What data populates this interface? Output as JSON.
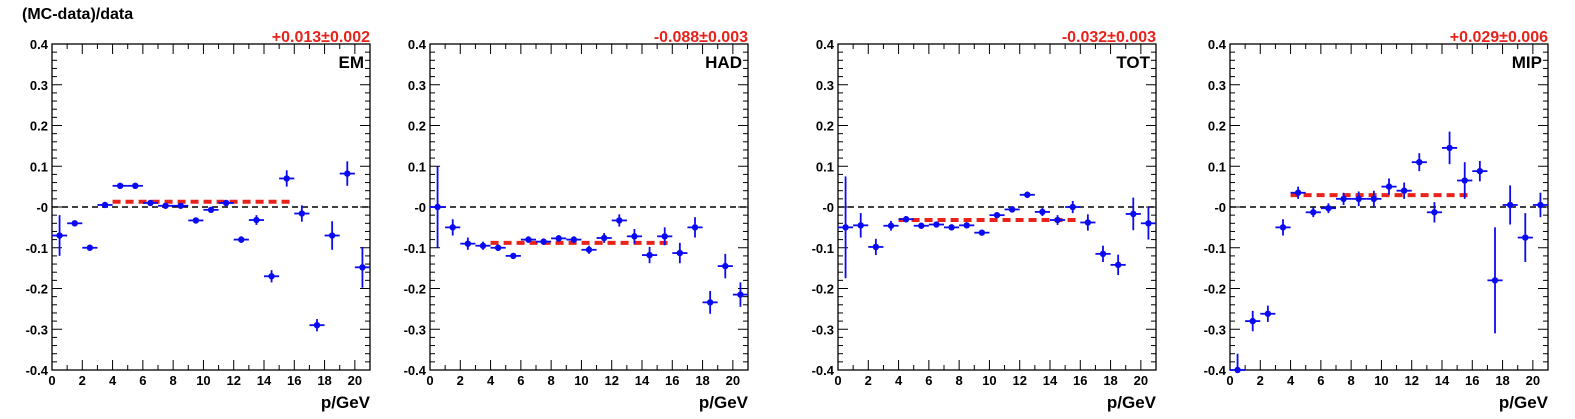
{
  "figure": {
    "ylabel": "(MC-data)/data"
  },
  "chart_data": [
    {
      "type": "scatter",
      "panel_label": "EM",
      "fit_annotation": "+0.013±0.002",
      "xlabel": "p/GeV",
      "ylabel": "(MC-data)/data",
      "xlim": [
        0,
        21
      ],
      "ylim": [
        -0.4,
        0.4
      ],
      "x_ticks": [
        0,
        2,
        4,
        6,
        8,
        10,
        12,
        14,
        16,
        18,
        20
      ],
      "y_ticks": [
        -0.4,
        -0.3,
        -0.2,
        -0.1,
        0,
        0.1,
        0.2,
        0.3,
        0.4
      ],
      "y_tick_labels": [
        "-0.4",
        "-0.3",
        "-0.2",
        "-0.1",
        "-0",
        "0.1",
        "0.2",
        "0.3",
        "0.4"
      ],
      "reference_line": 0,
      "fit": {
        "value": 0.013,
        "x_range": [
          4,
          16
        ]
      },
      "series": [
        {
          "x": [
            0.5,
            1.5,
            2.5,
            3.5,
            4.5,
            5.5,
            6.5,
            7.5,
            8.5,
            9.5,
            10.5,
            11.5,
            12.5,
            13.5,
            14.5,
            15.5,
            16.5,
            17.5,
            18.5,
            19.5,
            20.5
          ],
          "y": [
            -0.07,
            -0.04,
            -0.1,
            0.005,
            0.052,
            0.052,
            0.01,
            0.003,
            0.003,
            -0.033,
            -0.007,
            0.01,
            -0.08,
            -0.032,
            -0.17,
            0.07,
            -0.016,
            -0.29,
            -0.07,
            0.082,
            -0.148
          ],
          "yerr": [
            0.05,
            0.006,
            0.005,
            0.004,
            0.004,
            0.004,
            0.004,
            0.004,
            0.004,
            0.006,
            0.006,
            0.007,
            0.008,
            0.012,
            0.015,
            0.02,
            0.02,
            0.015,
            0.035,
            0.03,
            0.05
          ]
        }
      ]
    },
    {
      "type": "scatter",
      "panel_label": "HAD",
      "fit_annotation": "-0.088±0.003",
      "xlabel": "p/GeV",
      "xlim": [
        0,
        21
      ],
      "ylim": [
        -0.4,
        0.4
      ],
      "x_ticks": [
        0,
        2,
        4,
        6,
        8,
        10,
        12,
        14,
        16,
        18,
        20
      ],
      "y_ticks": [
        -0.4,
        -0.3,
        -0.2,
        -0.1,
        0,
        0.1,
        0.2,
        0.3,
        0.4
      ],
      "y_tick_labels": [
        "-0.4",
        "-0.3",
        "-0.2",
        "-0.1",
        "-0",
        "0.1",
        "0.2",
        "0.3",
        "0.4"
      ],
      "reference_line": 0,
      "fit": {
        "value": -0.088,
        "x_range": [
          4,
          16
        ]
      },
      "series": [
        {
          "x": [
            0.5,
            1.5,
            2.5,
            3.5,
            4.5,
            5.5,
            6.5,
            7.5,
            8.5,
            9.5,
            10.5,
            11.5,
            12.5,
            13.5,
            14.5,
            15.5,
            16.5,
            17.5,
            18.5,
            19.5,
            20.5
          ],
          "y": [
            0.0,
            -0.05,
            -0.09,
            -0.095,
            -0.1,
            -0.12,
            -0.08,
            -0.085,
            -0.077,
            -0.08,
            -0.105,
            -0.076,
            -0.033,
            -0.072,
            -0.118,
            -0.072,
            -0.113,
            -0.05,
            -0.234,
            -0.145,
            -0.215
          ],
          "yerr": [
            0.1,
            0.02,
            0.015,
            0.01,
            0.008,
            0.007,
            0.008,
            0.008,
            0.008,
            0.008,
            0.01,
            0.012,
            0.015,
            0.018,
            0.02,
            0.022,
            0.025,
            0.025,
            0.028,
            0.03,
            0.03
          ]
        }
      ]
    },
    {
      "type": "scatter",
      "panel_label": "TOT",
      "fit_annotation": "-0.032±0.003",
      "xlabel": "p/GeV",
      "xlim": [
        0,
        21
      ],
      "ylim": [
        -0.4,
        0.4
      ],
      "x_ticks": [
        0,
        2,
        4,
        6,
        8,
        10,
        12,
        14,
        16,
        18,
        20
      ],
      "y_ticks": [
        -0.4,
        -0.3,
        -0.2,
        -0.1,
        0,
        0.1,
        0.2,
        0.3,
        0.4
      ],
      "y_tick_labels": [
        "-0.4",
        "-0.3",
        "-0.2",
        "-0.1",
        "-0",
        "0.1",
        "0.2",
        "0.3",
        "0.4"
      ],
      "reference_line": 0,
      "fit": {
        "value": -0.032,
        "x_range": [
          4,
          16
        ]
      },
      "series": [
        {
          "x": [
            0.5,
            1.5,
            2.5,
            3.5,
            4.5,
            5.5,
            6.5,
            7.5,
            8.5,
            9.5,
            10.5,
            11.5,
            12.5,
            13.5,
            14.5,
            15.5,
            16.5,
            17.5,
            18.5,
            19.5,
            20.5
          ],
          "y": [
            -0.05,
            -0.045,
            -0.098,
            -0.046,
            -0.03,
            -0.046,
            -0.043,
            -0.05,
            -0.045,
            -0.063,
            -0.02,
            -0.006,
            0.03,
            -0.012,
            -0.032,
            0.0,
            -0.038,
            -0.115,
            -0.142,
            -0.017,
            -0.04
          ],
          "yerr": [
            0.125,
            0.03,
            0.02,
            0.012,
            0.008,
            0.006,
            0.006,
            0.006,
            0.006,
            0.006,
            0.007,
            0.007,
            0.008,
            0.01,
            0.012,
            0.015,
            0.02,
            0.02,
            0.025,
            0.04,
            0.04
          ]
        }
      ]
    },
    {
      "type": "scatter",
      "panel_label": "MIP",
      "fit_annotation": "+0.029±0.006",
      "xlabel": "p/GeV",
      "xlim": [
        0,
        21
      ],
      "ylim": [
        -0.4,
        0.4
      ],
      "x_ticks": [
        0,
        2,
        4,
        6,
        8,
        10,
        12,
        14,
        16,
        18,
        20
      ],
      "y_ticks": [
        -0.4,
        -0.3,
        -0.2,
        -0.1,
        0,
        0.1,
        0.2,
        0.3,
        0.4
      ],
      "y_tick_labels": [
        "-0.4",
        "-0.3",
        "-0.2",
        "-0.1",
        "-0",
        "0.1",
        "0.2",
        "0.3",
        "0.4"
      ],
      "reference_line": 0,
      "fit": {
        "value": 0.029,
        "x_range": [
          4,
          16
        ]
      },
      "series": [
        {
          "x": [
            0.5,
            1.5,
            2.5,
            3.5,
            4.5,
            5.5,
            6.5,
            7.5,
            8.5,
            9.5,
            10.5,
            11.5,
            12.5,
            13.5,
            14.5,
            15.5,
            16.5,
            17.5,
            18.5,
            19.5,
            20.5
          ],
          "y": [
            -0.4,
            -0.28,
            -0.262,
            -0.05,
            0.035,
            -0.013,
            -0.003,
            0.02,
            0.02,
            0.02,
            0.05,
            0.04,
            0.11,
            -0.013,
            0.145,
            0.065,
            0.088,
            -0.18,
            0.005,
            -0.075,
            0.005
          ],
          "yerr": [
            0.04,
            0.025,
            0.02,
            0.02,
            0.015,
            0.012,
            0.012,
            0.015,
            0.018,
            0.02,
            0.02,
            0.02,
            0.022,
            0.025,
            0.04,
            0.045,
            0.025,
            0.13,
            0.048,
            0.06,
            0.03
          ]
        }
      ]
    }
  ]
}
